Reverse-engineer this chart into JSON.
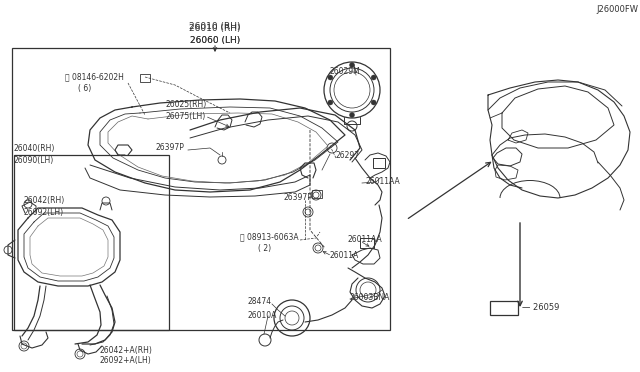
{
  "bg_color": "#ffffff",
  "line_color": "#333333",
  "lw": 0.7,
  "title1": "26010 (RH)",
  "title2": "26060 (LH)",
  "ref_code": "J26000FW",
  "fig_w": 6.4,
  "fig_h": 3.72,
  "dpi": 100
}
